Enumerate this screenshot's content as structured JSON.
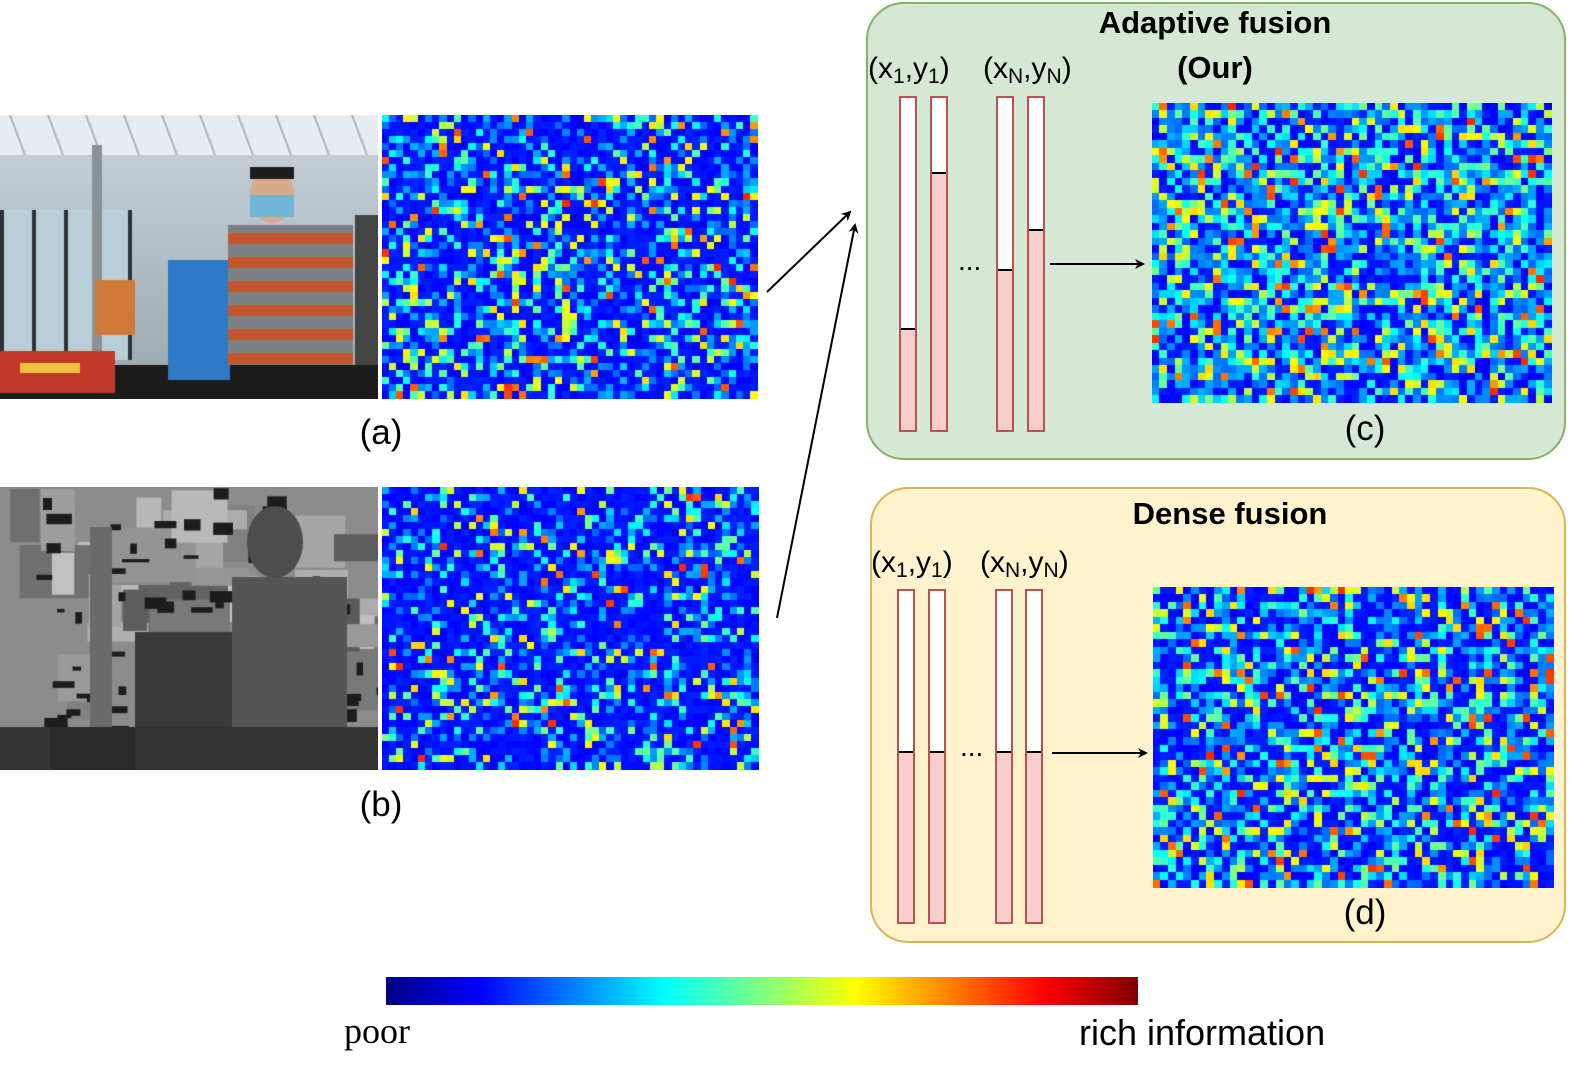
{
  "panels": {
    "adaptive": {
      "title_line1": "Adaptive fusion",
      "title_line2": "(Our)",
      "caption": "(c)",
      "coord_first": {
        "var_x": "x",
        "sub_x": "1",
        "var_y": "y",
        "sub_y": "1"
      },
      "coord_last": {
        "var_x": "x",
        "sub_x": "N",
        "var_y": "y",
        "sub_y": "N"
      },
      "ellipsis": "...",
      "weights": [
        0.3,
        0.77,
        0.48,
        0.6
      ]
    },
    "dense": {
      "title": "Dense fusion",
      "caption": "(d)",
      "coord_first": {
        "var_x": "x",
        "sub_x": "1",
        "var_y": "y",
        "sub_y": "1"
      },
      "coord_last": {
        "var_x": "x",
        "sub_x": "N",
        "var_y": "y",
        "sub_y": "N"
      },
      "ellipsis": "...",
      "weights": [
        0.51,
        0.51,
        0.51,
        0.51
      ]
    }
  },
  "inputs": {
    "rgb_caption": "(a)",
    "depth_caption": "(b)"
  },
  "colorbar": {
    "low_label": "poor",
    "high_label": "rich information",
    "colors": [
      "#00007f",
      "#0000ff",
      "#0080ff",
      "#00ffff",
      "#7fff7f",
      "#ffff00",
      "#ff8000",
      "#ff0000",
      "#7f0000"
    ]
  },
  "colors": {
    "adaptive_panel_fill": "#d5e8d4",
    "adaptive_panel_border": "#82b366",
    "dense_panel_fill": "#fff2cc",
    "dense_panel_border": "#d6b656",
    "bar_fill": "#f8cecc",
    "bar_border": "#b85450"
  }
}
